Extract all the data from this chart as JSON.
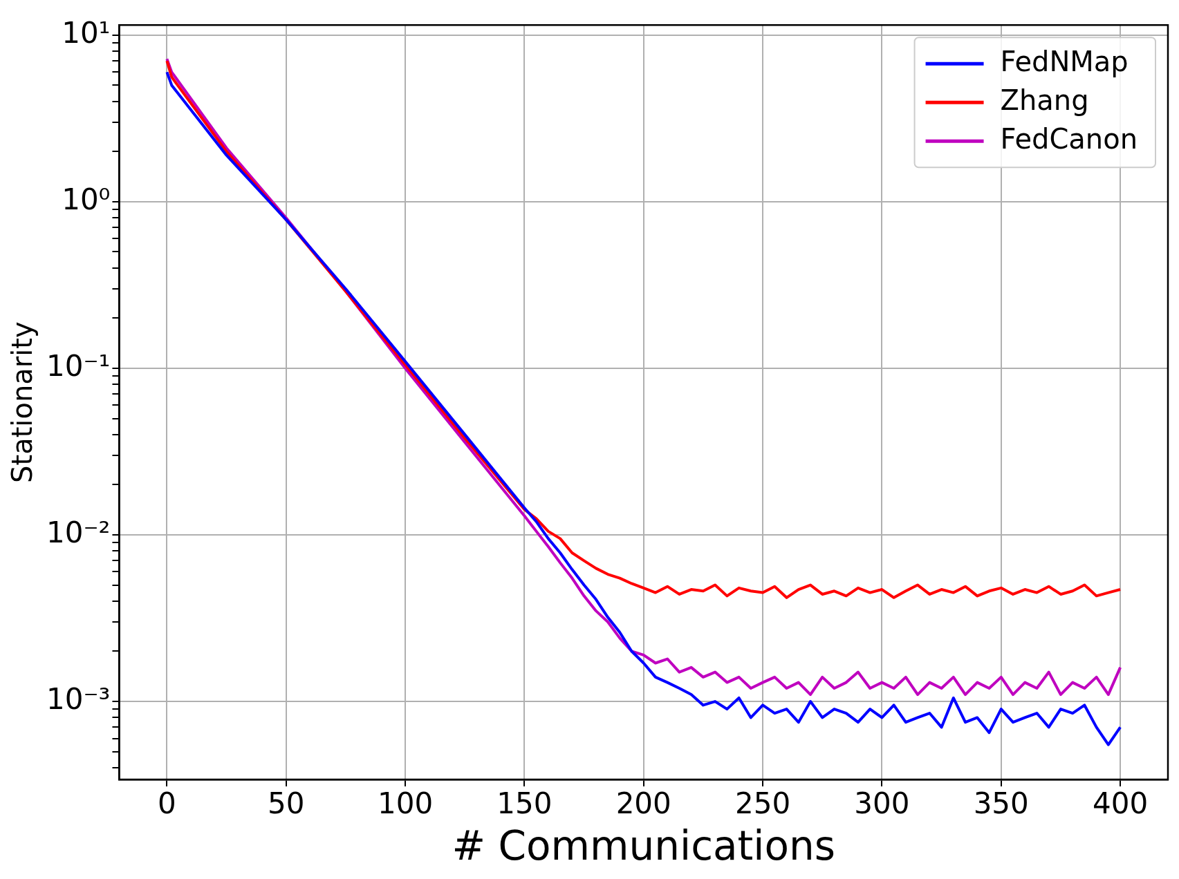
{
  "chart_data": {
    "type": "line",
    "xlabel": "# Communications",
    "ylabel": "Stationarity",
    "log": "y",
    "grid": true,
    "legend": "top right",
    "marker": "none",
    "line_style": "solid",
    "xlim": [
      -20,
      420
    ],
    "xticks": [
      0,
      50,
      100,
      150,
      200,
      250,
      300,
      350,
      400
    ],
    "ylim": [
      0.00034,
      11.5
    ],
    "yticks": [
      {
        "value": 0.0004,
        "label": null
      },
      {
        "value": 0.0005,
        "label": null
      },
      {
        "value": 0.0006,
        "label": null
      },
      {
        "value": 0.0007,
        "label": null
      },
      {
        "value": 0.0008,
        "label": null
      },
      {
        "value": 0.0009,
        "label": null
      },
      {
        "value": 0.001,
        "label": "10⁻³"
      },
      {
        "value": 0.002,
        "label": null
      },
      {
        "value": 0.003,
        "label": null
      },
      {
        "value": 0.004,
        "label": null
      },
      {
        "value": 0.005,
        "label": null
      },
      {
        "value": 0.006,
        "label": null
      },
      {
        "value": 0.007,
        "label": null
      },
      {
        "value": 0.008,
        "label": null
      },
      {
        "value": 0.009,
        "label": null
      },
      {
        "value": 0.01,
        "label": "10⁻²"
      },
      {
        "value": 0.02,
        "label": null
      },
      {
        "value": 0.03,
        "label": null
      },
      {
        "value": 0.04,
        "label": null
      },
      {
        "value": 0.05,
        "label": null
      },
      {
        "value": 0.06,
        "label": null
      },
      {
        "value": 0.07,
        "label": null
      },
      {
        "value": 0.08,
        "label": null
      },
      {
        "value": 0.09,
        "label": null
      },
      {
        "value": 0.1,
        "label": "10⁻¹"
      },
      {
        "value": 0.2,
        "label": null
      },
      {
        "value": 0.3,
        "label": null
      },
      {
        "value": 0.4,
        "label": null
      },
      {
        "value": 0.5,
        "label": null
      },
      {
        "value": 0.6,
        "label": null
      },
      {
        "value": 0.7,
        "label": null
      },
      {
        "value": 0.8,
        "label": null
      },
      {
        "value": 0.9,
        "label": null
      },
      {
        "value": 1,
        "label": "10⁰"
      },
      {
        "value": 2,
        "label": null
      },
      {
        "value": 3,
        "label": null
      },
      {
        "value": 4,
        "label": null
      },
      {
        "value": 5,
        "label": null
      },
      {
        "value": 6,
        "label": null
      },
      {
        "value": 7,
        "label": null
      },
      {
        "value": 8,
        "label": null
      },
      {
        "value": 9,
        "label": null
      },
      {
        "value": 10,
        "label": "10¹"
      }
    ],
    "x": [
      0,
      2,
      25,
      50,
      75,
      100,
      125,
      150,
      155,
      160,
      165,
      170,
      175,
      180,
      185,
      190,
      195,
      200,
      205,
      210,
      215,
      220,
      225,
      230,
      235,
      240,
      245,
      250,
      255,
      260,
      265,
      270,
      275,
      280,
      285,
      290,
      295,
      300,
      305,
      310,
      315,
      320,
      325,
      330,
      335,
      340,
      345,
      350,
      355,
      360,
      365,
      370,
      375,
      380,
      385,
      390,
      395,
      400
    ],
    "series": [
      {
        "name": "FedNMap",
        "color": "#0000ff",
        "values": [
          6.0,
          5.0,
          1.9,
          0.78,
          0.3,
          0.11,
          0.04,
          0.0145,
          0.012,
          0.0095,
          0.0078,
          0.0062,
          0.005,
          0.0041,
          0.0032,
          0.0026,
          0.002,
          0.0017,
          0.0014,
          0.0013,
          0.0012,
          0.0011,
          0.00095,
          0.001,
          0.0009,
          0.00105,
          0.0008,
          0.00095,
          0.00085,
          0.0009,
          0.00075,
          0.001,
          0.0008,
          0.0009,
          0.00085,
          0.00075,
          0.0009,
          0.0008,
          0.00095,
          0.00075,
          0.0008,
          0.00085,
          0.0007,
          0.00105,
          0.00075,
          0.0008,
          0.00065,
          0.0009,
          0.00075,
          0.0008,
          0.00085,
          0.0007,
          0.0009,
          0.00085,
          0.00095,
          0.0007,
          0.00055,
          0.0007
        ]
      },
      {
        "name": "Zhang",
        "color": "#ff0000",
        "values": [
          7.0,
          5.6,
          2.0,
          0.78,
          0.29,
          0.105,
          0.038,
          0.0142,
          0.0125,
          0.0105,
          0.0095,
          0.0078,
          0.007,
          0.0063,
          0.0058,
          0.0055,
          0.0051,
          0.0048,
          0.0045,
          0.0049,
          0.0044,
          0.0047,
          0.0046,
          0.005,
          0.0043,
          0.0048,
          0.0046,
          0.0045,
          0.0049,
          0.0042,
          0.0047,
          0.005,
          0.0044,
          0.0046,
          0.0043,
          0.0048,
          0.0045,
          0.0047,
          0.0042,
          0.0046,
          0.005,
          0.0044,
          0.0047,
          0.0045,
          0.0049,
          0.0043,
          0.0046,
          0.0048,
          0.0044,
          0.0047,
          0.0045,
          0.0049,
          0.0044,
          0.0046,
          0.005,
          0.0043,
          0.0045,
          0.0047
        ]
      },
      {
        "name": "FedCanon",
        "color": "#bf00bf",
        "values": [
          7.2,
          6.0,
          2.1,
          0.8,
          0.29,
          0.1,
          0.036,
          0.013,
          0.0105,
          0.0085,
          0.0068,
          0.0055,
          0.0043,
          0.0035,
          0.003,
          0.0024,
          0.002,
          0.0019,
          0.0017,
          0.0018,
          0.0015,
          0.0016,
          0.0014,
          0.0015,
          0.0013,
          0.0014,
          0.0012,
          0.0013,
          0.0014,
          0.0012,
          0.0013,
          0.0011,
          0.0014,
          0.0012,
          0.0013,
          0.0015,
          0.0012,
          0.0013,
          0.0012,
          0.0014,
          0.0011,
          0.0013,
          0.0012,
          0.0014,
          0.0011,
          0.0013,
          0.0012,
          0.0014,
          0.0011,
          0.0013,
          0.0012,
          0.0015,
          0.0011,
          0.0013,
          0.0012,
          0.0014,
          0.0011,
          0.0016
        ]
      }
    ]
  }
}
